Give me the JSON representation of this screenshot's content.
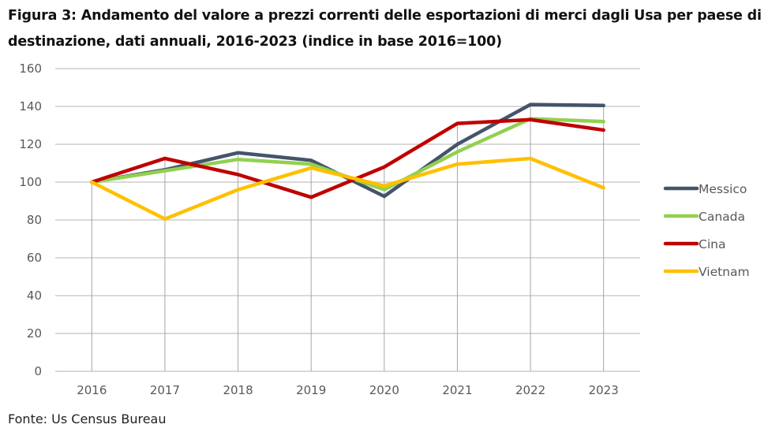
{
  "title": "Figura 3: Andamento del valore a prezzi correnti delle esportazioni di merci dagli Usa per paese di destinazione, dati annuali, 2016-2023 (indice in base 2016=100)",
  "source": "Fonte: Us Census Bureau",
  "chart_data": {
    "type": "line",
    "title": "Figura 3: Andamento del valore a prezzi correnti delle esportazioni di merci dagli Usa per paese di destinazione, dati annuali, 2016-2023 (indice in base 2016=100)",
    "xlabel": "",
    "ylabel": "",
    "categories": [
      "2016",
      "2017",
      "2018",
      "2019",
      "2020",
      "2021",
      "2022",
      "2023"
    ],
    "ylim": [
      0,
      160
    ],
    "yticks": [
      0,
      20,
      40,
      60,
      80,
      100,
      120,
      140,
      160
    ],
    "ytick_labels": [
      "0",
      "20",
      "40",
      "60",
      "80",
      "100",
      "120",
      "140",
      "160"
    ],
    "grid": true,
    "legend_position": "right",
    "series": [
      {
        "name": "Messico",
        "color": "#44546A",
        "values": [
          100,
          106.5,
          115.5,
          111.5,
          92.5,
          120,
          141,
          140.5
        ]
      },
      {
        "name": "Canada",
        "color": "#92D050",
        "values": [
          100,
          106,
          112,
          109.5,
          96,
          116,
          133.5,
          132
        ]
      },
      {
        "name": "Cina",
        "color": "#C00000",
        "values": [
          100,
          112.5,
          104,
          92,
          108,
          131,
          133,
          127.5
        ]
      },
      {
        "name": "Vietnam",
        "color": "#FFC000",
        "values": [
          100,
          80.5,
          96,
          107.5,
          98,
          109.5,
          112.5,
          97
        ]
      }
    ],
    "colors": {
      "gridline": "#D9D9D9",
      "vertical_drop_line": "#A6A6A6",
      "tick_text": "#595959"
    }
  }
}
